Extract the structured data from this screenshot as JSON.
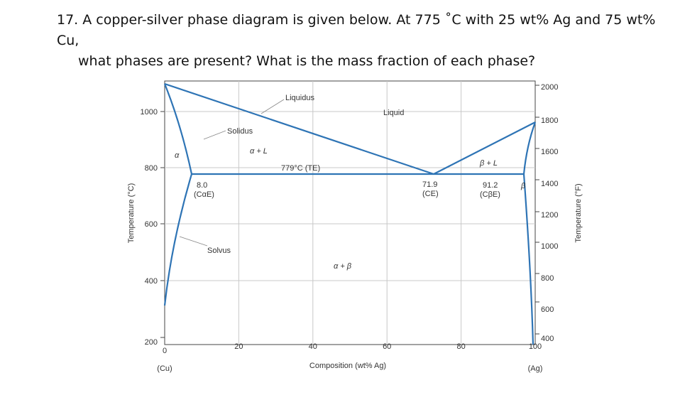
{
  "question": {
    "line1": "17. A copper-silver phase diagram is given below. At 775 ˚C with 25 wt% Ag and 75 wt% Cu,",
    "line2": "what phases are present? What is the mass fraction of each phase?"
  },
  "diagram": {
    "left_axis_label": "Temperature (°C)",
    "right_axis_label": "Temperature (°F)",
    "x_axis_label": "Composition (wt% Ag)",
    "x_end_left": "(Cu)",
    "x_end_right": "(Ag)",
    "x_ticks": [
      "0",
      "20",
      "40",
      "60",
      "80",
      "100"
    ],
    "y_ticks_c": [
      "200",
      "400",
      "600",
      "800",
      "1000"
    ],
    "y_ticks_f": [
      "400",
      "600",
      "800",
      "1000",
      "1200",
      "1400",
      "1600",
      "1800",
      "2000"
    ],
    "labels": {
      "liquidus": "Liquidus",
      "liquid": "Liquid",
      "solidus": "Solidus",
      "alpha_l": "α + L",
      "alpha": "α",
      "eutectic_temp": "779°C (TE)",
      "beta_l": "β + L",
      "beta": "β",
      "c_alpha_val": "8.0",
      "c_alpha_sym": "(CαE)",
      "c_e_val": "71.9",
      "c_e_sym": "(CE)",
      "c_beta_val": "91.2",
      "c_beta_sym": "(CβE)",
      "solvus": "Solvus",
      "alpha_beta": "α + β"
    },
    "line_color": "#2e74b5",
    "grid_color": "#c8c8c8"
  }
}
